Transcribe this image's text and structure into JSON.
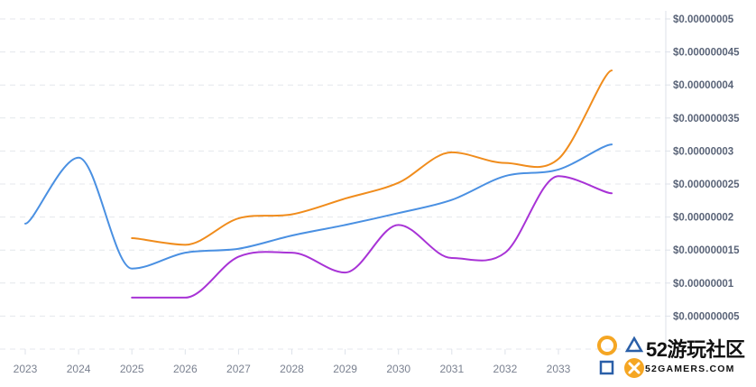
{
  "chart_data": {
    "type": "line",
    "title": "",
    "xlabel": "",
    "ylabel": "",
    "x": [
      2023,
      2024,
      2025,
      2026,
      2027,
      2028,
      2029,
      2030,
      2031,
      2032,
      2033,
      2034
    ],
    "x_tick_labels": [
      "2023",
      "2024",
      "2025",
      "2026",
      "2027",
      "2028",
      "2029",
      "2030",
      "2031",
      "2032",
      "2033"
    ],
    "y_tick_values": [
      5e-09,
      1e-08,
      1.5e-08,
      2e-08,
      2.5e-08,
      3e-08,
      3.5e-08,
      4e-08,
      4.5e-08,
      5e-08
    ],
    "y_tick_labels": [
      "$0.000000005",
      "$0.00000001",
      "$0.000000015",
      "$0.00000002",
      "$0.000000025",
      "$0.00000003",
      "$0.000000035",
      "$0.00000004",
      "$0.000000045",
      "$0.00000005"
    ],
    "ylim": [
      0,
      5e-08
    ],
    "y_axis_position": "right",
    "grid": true,
    "legend": "none",
    "series": [
      {
        "color": "#4a90e2",
        "x": [
          2023.0,
          2024.0,
          2025.0,
          2026.0,
          2027.0,
          2028.0,
          2029.0,
          2030.0,
          2031.0,
          2032.0,
          2033.0,
          2034.0
        ],
        "values": [
          1.9e-08,
          2.9e-08,
          1.22e-08,
          1.46e-08,
          1.52e-08,
          1.72e-08,
          1.88e-08,
          2.06e-08,
          2.26e-08,
          2.62e-08,
          2.72e-08,
          3.1e-08
        ]
      },
      {
        "color": "#f08c1c",
        "x": [
          2025.0,
          2026.0,
          2027.0,
          2028.0,
          2029.0,
          2030.0,
          2031.0,
          2032.0,
          2033.0,
          2034.0
        ],
        "values": [
          1.68e-08,
          1.58e-08,
          1.98e-08,
          2.04e-08,
          2.28e-08,
          2.52e-08,
          2.98e-08,
          2.82e-08,
          2.88e-08,
          4.22e-08
        ]
      },
      {
        "color": "#a833d6",
        "x": [
          2025.0,
          2026.0,
          2027.0,
          2028.0,
          2029.0,
          2030.0,
          2031.0,
          2032.0,
          2033.0,
          2034.0
        ],
        "values": [
          7.8e-09,
          7.8e-09,
          1.4e-08,
          1.46e-08,
          1.16e-08,
          1.88e-08,
          1.38e-08,
          1.46e-08,
          2.62e-08,
          2.36e-08
        ]
      }
    ]
  },
  "watermark": {
    "main_text": "52游玩社区",
    "sub_text": "52GAMERS.COM",
    "colors": {
      "circle": "#f5a623",
      "triangle": "#2a5fa8",
      "square": "#2a5fa8",
      "cross_bg": "#f5a623"
    }
  }
}
